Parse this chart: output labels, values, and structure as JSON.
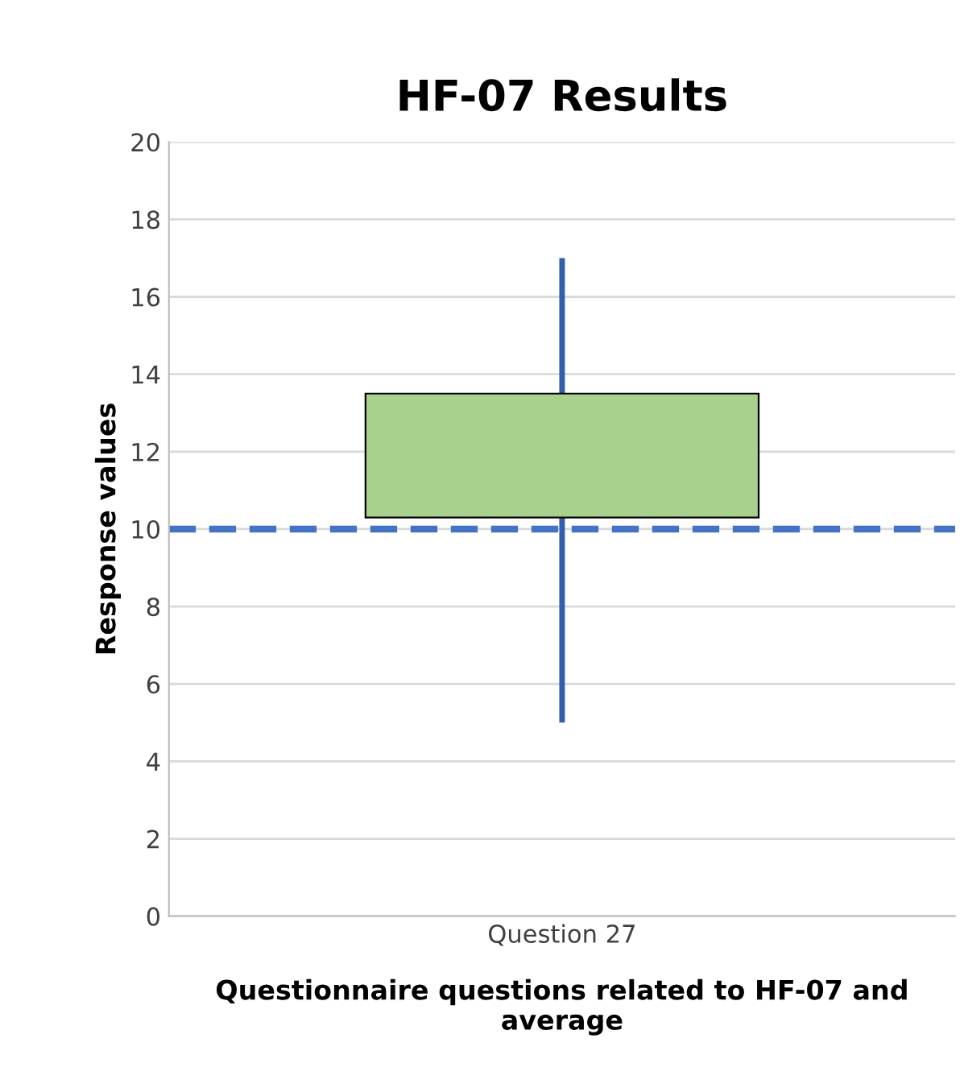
{
  "chart_data": {
    "type": "candlestick",
    "title": "HF-07 Results",
    "xlabel": "Questionnaire questions related to HF-07 and average",
    "ylabel": "Response values",
    "categories": [
      "Question 27"
    ],
    "ohlc": [
      [
        10.3,
        17,
        5,
        13.5
      ]
    ],
    "color": "#a9d18e",
    "ylim": [
      0,
      20
    ],
    "yticks": [
      0,
      2,
      4,
      6,
      8,
      10,
      12,
      14,
      16,
      18,
      20
    ],
    "grid": "y",
    "ref_lines": [
      {
        "axis": "y",
        "value": 10,
        "color": "#4472c4",
        "line_style": "dashed"
      }
    ]
  }
}
